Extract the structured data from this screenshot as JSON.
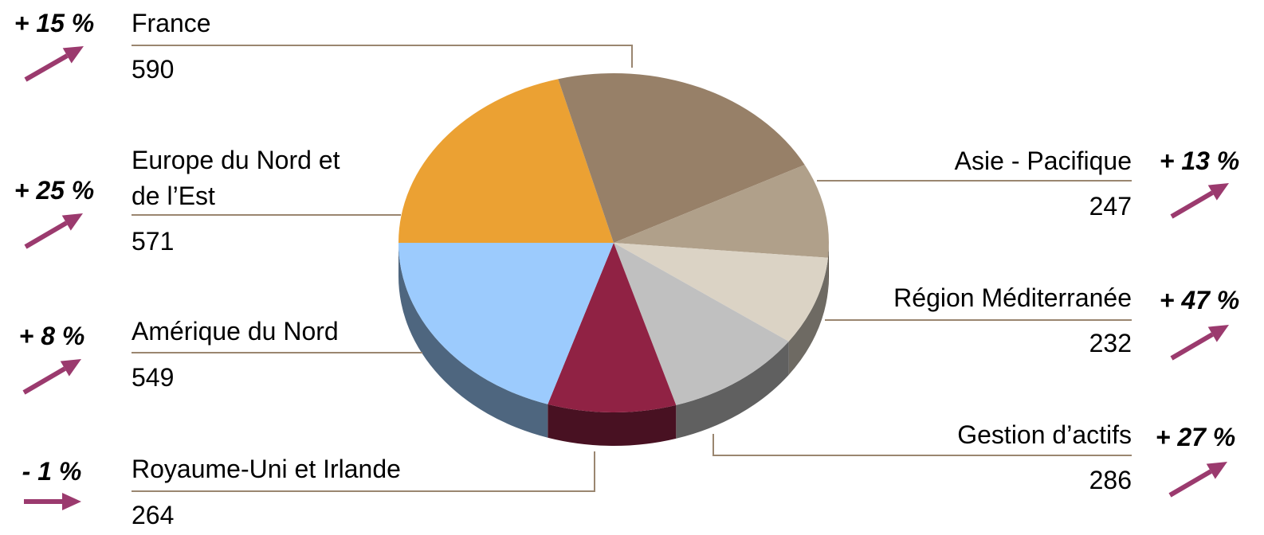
{
  "chart_data": {
    "type": "pie",
    "categories": [
      "Europe du Nord et de l’Est",
      "France",
      "Asie - Pacifique",
      "Région Méditerranée",
      "Gestion d’actifs",
      "Royaume-Uni et Irlande",
      "Amérique du Nord"
    ],
    "values": [
      571,
      590,
      247,
      232,
      286,
      264,
      549
    ],
    "colors": [
      "#eba133",
      "#978068",
      "#b0a08a",
      "#dbd3c5",
      "#c0c0c0",
      "#902244",
      "#9ccbfd"
    ],
    "growth": [
      25,
      15,
      13,
      47,
      27,
      -1,
      8
    ],
    "growth_labels": [
      "+ 25 %",
      "+ 15 %",
      "+ 13 %",
      "+ 47 %",
      "+ 27 %",
      "- 1 %",
      "+ 8 %"
    ],
    "arrow_color": "#9b3a6e"
  }
}
